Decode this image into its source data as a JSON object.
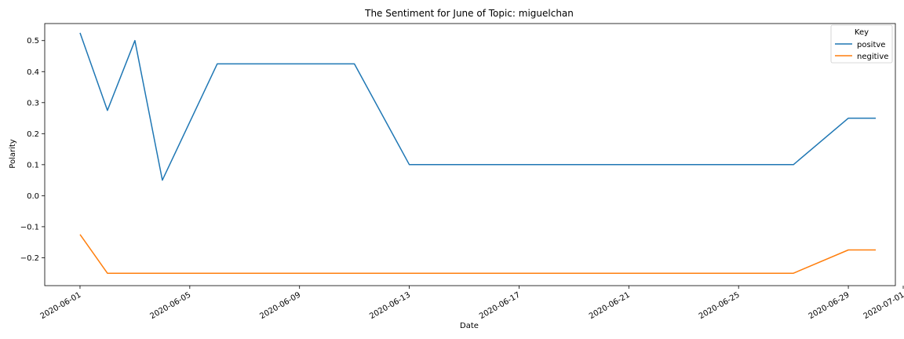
{
  "chart_data": {
    "type": "line",
    "title": "The Sentiment for June of Topic: miguelchan",
    "xlabel": "Date",
    "ylabel": "Polarity",
    "x_tick_labels": [
      "2020-06-01",
      "2020-06-05",
      "2020-06-09",
      "2020-06-13",
      "2020-06-17",
      "2020-06-21",
      "2020-06-25",
      "2020-06-29",
      "2020-07-01"
    ],
    "x_ticks": [
      "2020-06-01",
      "2020-06-05",
      "2020-06-09",
      "2020-06-13",
      "2020-06-17",
      "2020-06-21",
      "2020-06-25",
      "2020-06-29",
      "2020-07-01"
    ],
    "y_ticks": [
      -0.2,
      -0.1,
      0.0,
      0.1,
      0.2,
      0.3,
      0.4,
      0.5
    ],
    "y_tick_labels": [
      "−0.2",
      "−0.1",
      "0.0",
      "0.1",
      "0.2",
      "0.3",
      "0.4",
      "0.5"
    ],
    "xlim": [
      "2020-05-31",
      "2020-07-01"
    ],
    "ylim": [
      -0.29,
      0.555
    ],
    "grid": false,
    "legend": {
      "title": "Key",
      "placement": "top-right"
    },
    "series": [
      {
        "name": "positve",
        "color": "#1f77b4",
        "points": [
          [
            "2020-06-01",
            0.525
          ],
          [
            "2020-06-02",
            0.275
          ],
          [
            "2020-06-03",
            0.5
          ],
          [
            "2020-06-04",
            0.05
          ],
          [
            "2020-06-06",
            0.425
          ],
          [
            "2020-06-07",
            0.425
          ],
          [
            "2020-06-11",
            0.425
          ],
          [
            "2020-06-13",
            0.1
          ],
          [
            "2020-06-27",
            0.1
          ],
          [
            "2020-06-29",
            0.25
          ],
          [
            "2020-06-30",
            0.25
          ]
        ]
      },
      {
        "name": "negitive",
        "color": "#ff7f0e",
        "points": [
          [
            "2020-06-01",
            -0.125
          ],
          [
            "2020-06-02",
            -0.25
          ],
          [
            "2020-06-27",
            -0.25
          ],
          [
            "2020-06-29",
            -0.175
          ],
          [
            "2020-06-30",
            -0.175
          ]
        ]
      }
    ]
  }
}
